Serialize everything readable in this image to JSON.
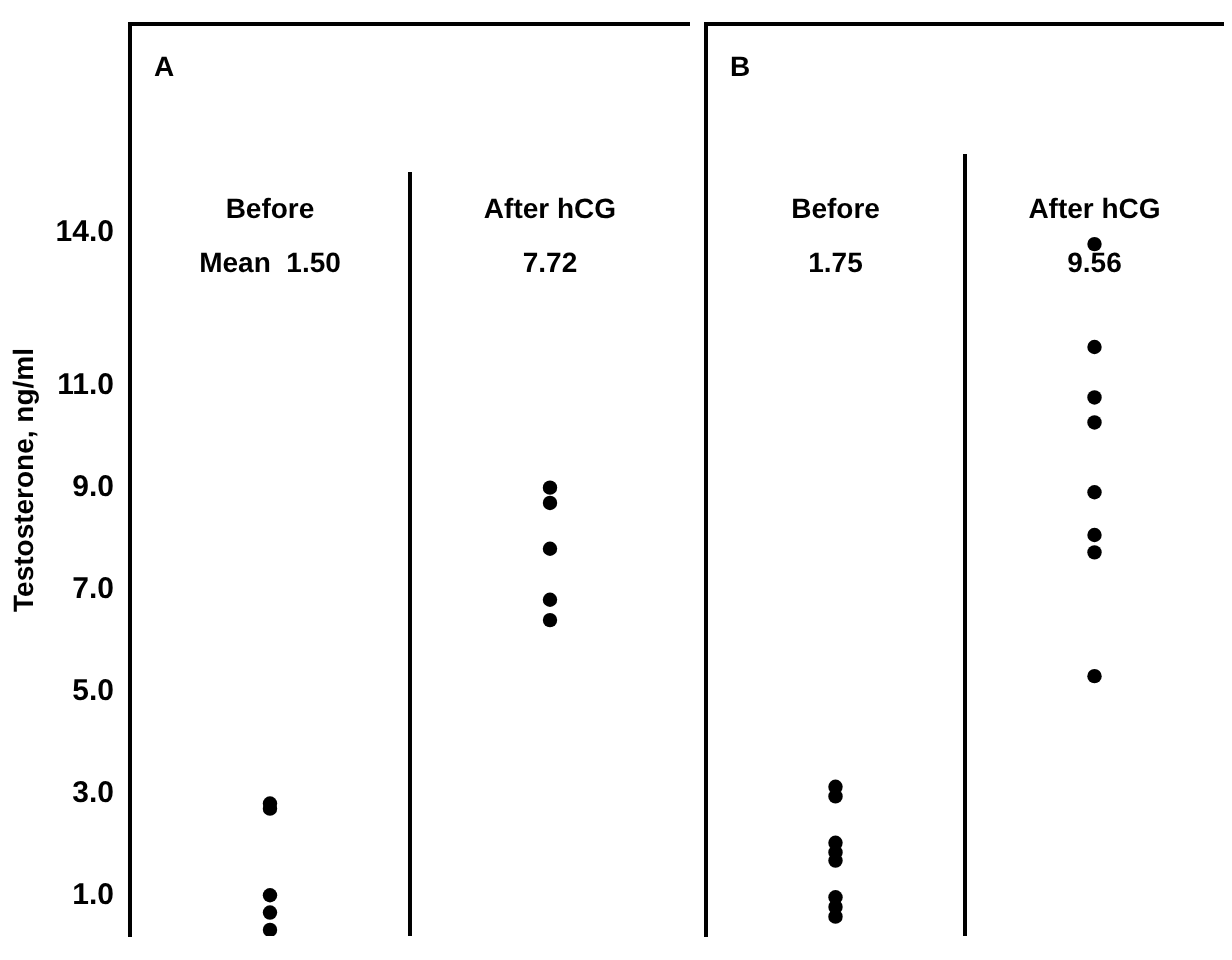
{
  "chart_data": [
    {
      "type": "scatter",
      "categories": [
        "Before",
        "After hCG"
      ],
      "ylabel": "Testosterone, ng/ml",
      "ylim": [
        0.2,
        18.1
      ],
      "yticks": [
        {
          "value": 1,
          "label": "1.0"
        },
        {
          "value": 3,
          "label": "3.0"
        },
        {
          "value": 5,
          "label": "5.0"
        },
        {
          "value": 7,
          "label": "7.0"
        },
        {
          "value": 9,
          "label": "9.0"
        },
        {
          "value": 11,
          "label": "11.0"
        },
        {
          "value": 14,
          "label": "14.0"
        }
      ],
      "annotations": [
        "A",
        "Mean  1.50",
        "7.72"
      ],
      "marker": "circle",
      "legend": false,
      "grid": false,
      "series": [
        {
          "color": "#000000",
          "x": [
            "Before",
            "Before",
            "Before",
            "Before",
            "Before",
            "After hCG",
            "After hCG",
            "After hCG",
            "After hCG",
            "After hCG"
          ],
          "values": [
            2.8,
            2.7,
            1.0,
            0.66,
            0.32,
            9.0,
            8.7,
            7.8,
            6.8,
            6.4
          ]
        }
      ]
    },
    {
      "type": "scatter",
      "categories": [
        "Before",
        "After hCG"
      ],
      "ylim": [
        0.2,
        18.1
      ],
      "tick_labels": "x",
      "annotations": [
        "B",
        "1.75",
        "9.56"
      ],
      "marker": "circle",
      "legend": false,
      "grid": false,
      "series": [
        {
          "color": "#000000",
          "x": [
            "Before",
            "Before",
            "Before",
            "Before",
            "Before",
            "Before",
            "Before",
            "Before",
            "After hCG",
            "After hCG",
            "After hCG",
            "After hCG",
            "After hCG",
            "After hCG",
            "After hCG",
            "After hCG"
          ],
          "values": [
            3.13,
            2.94,
            2.03,
            1.84,
            1.68,
            0.96,
            0.77,
            0.58,
            13.78,
            11.76,
            10.77,
            10.28,
            8.91,
            8.07,
            7.73,
            5.3
          ]
        }
      ]
    }
  ]
}
